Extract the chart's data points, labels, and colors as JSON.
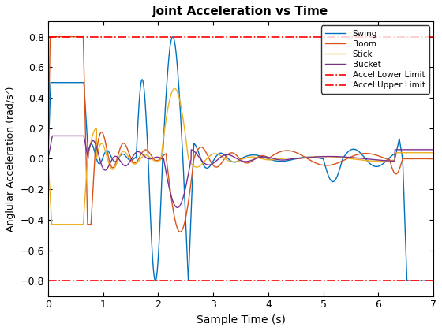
{
  "title": "Joint Acceleration vs Time",
  "xlabel": "Sample Time (s)",
  "ylabel": "Anglular Acceleration (rad/s²)",
  "xlim": [
    0,
    7
  ],
  "ylim": [
    -0.9,
    0.9
  ],
  "yticks": [
    -0.8,
    -0.6,
    -0.4,
    -0.2,
    0.0,
    0.2,
    0.4,
    0.6,
    0.8
  ],
  "xticks": [
    0,
    1,
    2,
    3,
    4,
    5,
    6,
    7
  ],
  "accel_lower": -0.8,
  "accel_upper": 0.8,
  "legend_labels": [
    "Swing",
    "Boom",
    "Stick",
    "Bucket",
    "Accel Lower Limit",
    "Accel Upper Limit"
  ],
  "swing_color": "#0072BD",
  "boom_color": "#D95319",
  "stick_color": "#EDB120",
  "bucket_color": "#7E2F8E",
  "limit_color": "#FF0000",
  "background": "#FFFFFF"
}
